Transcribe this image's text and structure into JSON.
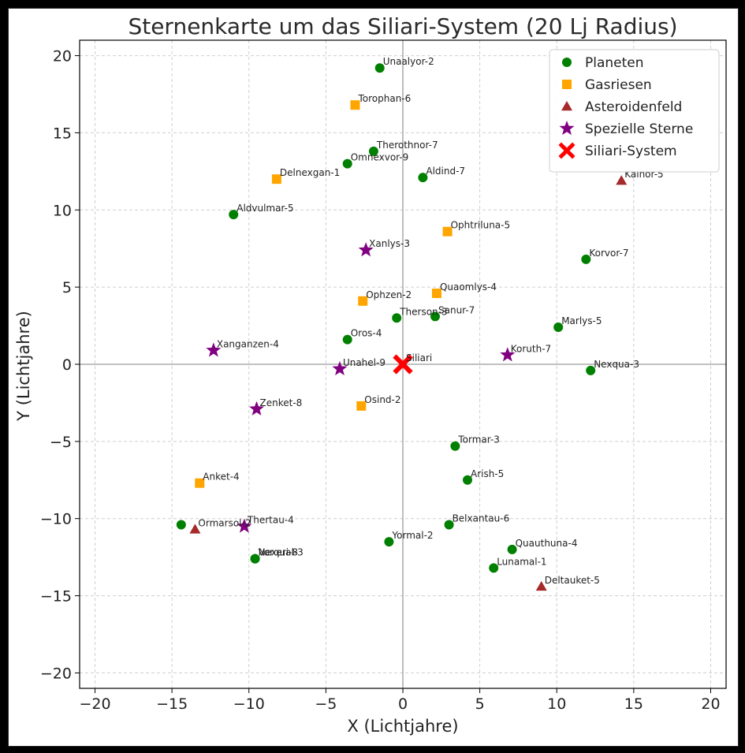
{
  "chart_data": {
    "type": "scatter",
    "title": "Sternenkarte um das Siliari-System (20 Lj Radius)",
    "xlabel": "X (Lichtjahre)",
    "ylabel": "Y (Lichtjahre)",
    "xlim": [
      -21,
      21
    ],
    "ylim": [
      -21,
      21
    ],
    "xticks": [
      -20,
      -15,
      -10,
      -5,
      0,
      5,
      10,
      15,
      20
    ],
    "yticks": [
      -20,
      -15,
      -10,
      -5,
      0,
      5,
      10,
      15,
      20
    ],
    "grid": true,
    "legend_position": "top-right",
    "categories": [
      {
        "key": "planet",
        "name": "Planeten",
        "color": "#008000",
        "marker": "circle"
      },
      {
        "key": "gas",
        "name": "Gasriesen",
        "color": "#ffa500",
        "marker": "square"
      },
      {
        "key": "asteroid",
        "name": "Asteroidenfeld",
        "color": "#a52a2a",
        "marker": "triangle"
      },
      {
        "key": "star",
        "name": "Spezielle Sterne",
        "color": "#800080",
        "marker": "star"
      },
      {
        "key": "home",
        "name": "Siliari-System",
        "color": "#ff0000",
        "marker": "x"
      }
    ],
    "points": [
      {
        "label": "Unaalyor-2",
        "x": -1.5,
        "y": 19.2,
        "cat": "planet"
      },
      {
        "label": "Torophan-6",
        "x": -3.1,
        "y": 16.8,
        "cat": "gas"
      },
      {
        "label": "Therothnor-7",
        "x": -1.9,
        "y": 13.8,
        "cat": "planet"
      },
      {
        "label": "Omnexvor-9",
        "x": -3.6,
        "y": 13.0,
        "cat": "planet"
      },
      {
        "label": "Delnexgan-1",
        "x": -8.2,
        "y": 12.0,
        "cat": "gas"
      },
      {
        "label": "Aldind-7",
        "x": 1.3,
        "y": 12.1,
        "cat": "planet"
      },
      {
        "label": "Kalnor-5",
        "x": 14.2,
        "y": 11.9,
        "cat": "asteroid"
      },
      {
        "label": "Aldvulmar-5",
        "x": -11.0,
        "y": 9.7,
        "cat": "planet"
      },
      {
        "label": "Ophtriluna-5",
        "x": 2.9,
        "y": 8.6,
        "cat": "gas"
      },
      {
        "label": "Xanlys-3",
        "x": -2.4,
        "y": 7.4,
        "cat": "star"
      },
      {
        "label": "Korvor-7",
        "x": 11.9,
        "y": 6.8,
        "cat": "planet"
      },
      {
        "label": "Quaomlys-4",
        "x": 2.2,
        "y": 4.6,
        "cat": "gas"
      },
      {
        "label": "Ophzen-2",
        "x": -2.6,
        "y": 4.1,
        "cat": "gas"
      },
      {
        "label": "Therson-3",
        "x": -0.4,
        "y": 3.0,
        "cat": "planet"
      },
      {
        "label": "Sanur-7",
        "x": 2.1,
        "y": 3.1,
        "cat": "planet"
      },
      {
        "label": "Marlys-5",
        "x": 10.1,
        "y": 2.4,
        "cat": "planet"
      },
      {
        "label": "Oros-4",
        "x": -3.6,
        "y": 1.6,
        "cat": "planet"
      },
      {
        "label": "Xanganzen-4",
        "x": -12.3,
        "y": 0.9,
        "cat": "star"
      },
      {
        "label": "Koruth-7",
        "x": 6.8,
        "y": 0.6,
        "cat": "star"
      },
      {
        "label": "Unahel-9",
        "x": -4.1,
        "y": -0.3,
        "cat": "star"
      },
      {
        "label": "Nexqua-3",
        "x": 12.2,
        "y": -0.4,
        "cat": "planet"
      },
      {
        "label": "Zenket-8",
        "x": -9.5,
        "y": -2.9,
        "cat": "star"
      },
      {
        "label": "Osind-2",
        "x": -2.7,
        "y": -2.7,
        "cat": "gas"
      },
      {
        "label": "Tormar-3",
        "x": 3.4,
        "y": -5.3,
        "cat": "planet"
      },
      {
        "label": "Anket-4",
        "x": -13.2,
        "y": -7.7,
        "cat": "gas"
      },
      {
        "label": "Arish-5",
        "x": 4.2,
        "y": -7.5,
        "cat": "planet"
      },
      {
        "label": "Belxantau-6",
        "x": 3.0,
        "y": -10.4,
        "cat": "planet"
      },
      {
        "label": "Ormarsol-2",
        "x": -13.5,
        "y": -10.7,
        "cat": "asteroid"
      },
      {
        "label": "",
        "x": -14.4,
        "y": -10.4,
        "cat": "planet"
      },
      {
        "label": "Thertau-4",
        "x": -10.3,
        "y": -10.5,
        "cat": "star"
      },
      {
        "label": "Yormal-2",
        "x": -0.9,
        "y": -11.5,
        "cat": "planet"
      },
      {
        "label": "Quauthuna-4",
        "x": 7.1,
        "y": -12.0,
        "cat": "planet"
      },
      {
        "label": "Vorqual-3",
        "x": -9.6,
        "y": -12.6,
        "cat": "planet"
      },
      {
        "label": "Nexeri-8",
        "x": -9.6,
        "y": -12.6,
        "cat": "planet"
      },
      {
        "label": "Lunamal-1",
        "x": 5.9,
        "y": -13.2,
        "cat": "planet"
      },
      {
        "label": "Deltauket-5",
        "x": 9.0,
        "y": -14.4,
        "cat": "asteroid"
      },
      {
        "label": "Siliari",
        "x": 0.0,
        "y": 0.0,
        "cat": "home"
      }
    ]
  }
}
